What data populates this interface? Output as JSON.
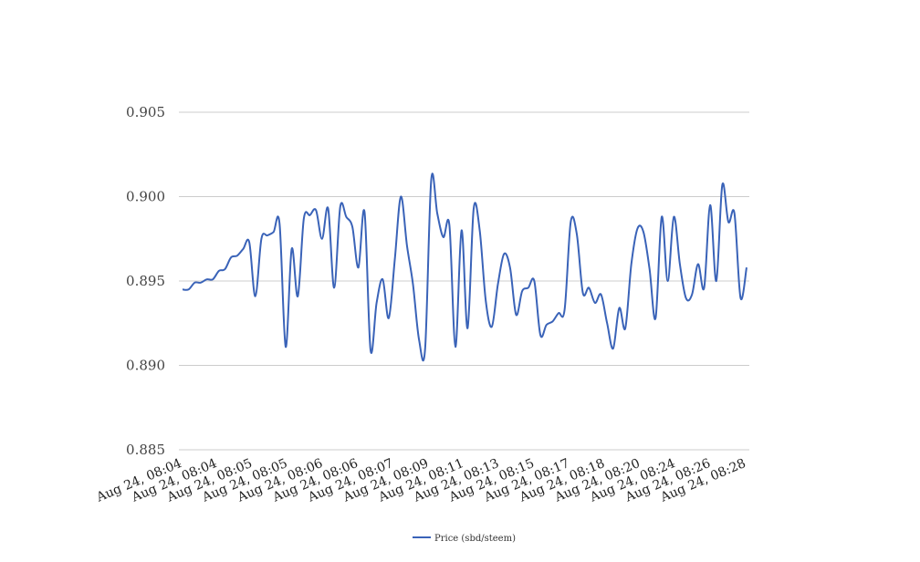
{
  "chart_data": {
    "type": "line",
    "title": "",
    "xlabel": "",
    "ylabel": "",
    "ylim": [
      0.885,
      0.905
    ],
    "yticks": [
      "0.885",
      "0.890",
      "0.895",
      "0.900",
      "0.905"
    ],
    "grid": true,
    "legend_position": "bottom-center",
    "colors": {
      "series": "#3a63b8",
      "grid": "#cccccc"
    },
    "xtick_labels": [
      "Aug 24, 08:04",
      "Aug 24, 08:04",
      "Aug 24, 08:05",
      "Aug 24, 08:05",
      "Aug 24, 08:06",
      "Aug 24, 08:06",
      "Aug 24, 08:07",
      "Aug 24, 08:09",
      "Aug 24, 08:11",
      "Aug 24, 08:13",
      "Aug 24, 08:15",
      "Aug 24, 08:17",
      "Aug 24, 08:18",
      "Aug 24, 08:20",
      "Aug 24, 08:24",
      "Aug 24, 08:26",
      "Aug 24, 08:28"
    ],
    "series": [
      {
        "name": "Price (sbd/steem)",
        "values": [
          0.8945,
          0.8945,
          0.8949,
          0.8949,
          0.8951,
          0.8951,
          0.8956,
          0.8957,
          0.8964,
          0.8965,
          0.8969,
          0.8973,
          0.8941,
          0.8975,
          0.8977,
          0.8979,
          0.8984,
          0.8911,
          0.8969,
          0.8941,
          0.8987,
          0.8989,
          0.8992,
          0.8975,
          0.8993,
          0.8946,
          0.8994,
          0.8988,
          0.8982,
          0.8958,
          0.8991,
          0.8909,
          0.8937,
          0.8951,
          0.8928,
          0.8963,
          0.9,
          0.8971,
          0.8948,
          0.8915,
          0.891,
          0.901,
          0.899,
          0.8976,
          0.8983,
          0.8911,
          0.898,
          0.8922,
          0.8993,
          0.898,
          0.8938,
          0.8923,
          0.8948,
          0.8966,
          0.8958,
          0.893,
          0.8944,
          0.8946,
          0.895,
          0.8918,
          0.8924,
          0.8926,
          0.8931,
          0.8933,
          0.8985,
          0.8978,
          0.8943,
          0.8946,
          0.8937,
          0.8942,
          0.8925,
          0.891,
          0.8934,
          0.8922,
          0.896,
          0.8981,
          0.8979,
          0.8957,
          0.8928,
          0.8988,
          0.895,
          0.8988,
          0.896,
          0.894,
          0.8942,
          0.896,
          0.8946,
          0.8995,
          0.895,
          0.9007,
          0.8985,
          0.899,
          0.894,
          0.8958
        ]
      }
    ]
  }
}
